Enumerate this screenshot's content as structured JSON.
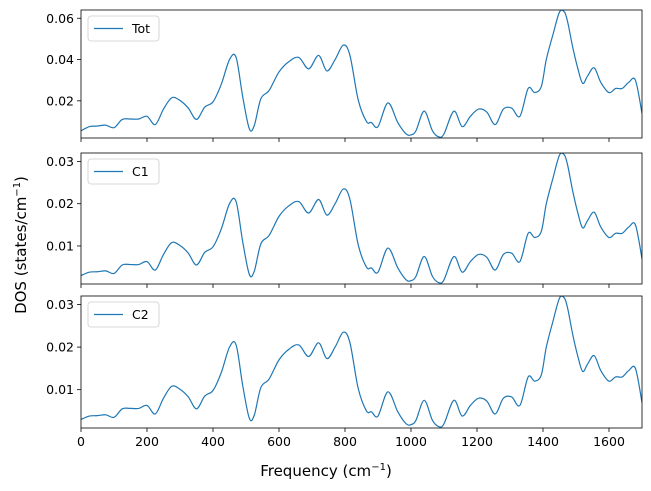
{
  "figure": {
    "xlabel": "Frequency (cm",
    "xlabel_sup": "−1",
    "xlabel_tail": ")",
    "ylabel": "DOS (states/cm",
    "ylabel_sup": "−1",
    "ylabel_tail": ")",
    "line_color": "#1f77b4"
  },
  "chart_data": [
    {
      "type": "line",
      "legend": "Tot",
      "legend_position": "top-left",
      "xlim": [
        0,
        1700
      ],
      "ylim": [
        0.002,
        0.064
      ],
      "yticks": [
        0.02,
        0.04,
        0.06
      ],
      "ytick_labels": [
        "0.02",
        "0.04",
        "0.06"
      ],
      "xticks": [
        0,
        200,
        400,
        600,
        800,
        1000,
        1200,
        1400,
        1600
      ],
      "show_xtick_labels": false,
      "series": [
        {
          "name": "Tot",
          "x": [
            0,
            25,
            50,
            75,
            100,
            125,
            150,
            175,
            200,
            225,
            250,
            275,
            300,
            325,
            350,
            375,
            400,
            425,
            450,
            470,
            490,
            510,
            525,
            545,
            570,
            600,
            630,
            660,
            690,
            720,
            745,
            770,
            795,
            815,
            840,
            865,
            880,
            900,
            930,
            960,
            985,
            1000,
            1015,
            1040,
            1065,
            1085,
            1100,
            1130,
            1155,
            1180,
            1205,
            1230,
            1255,
            1280,
            1305,
            1330,
            1355,
            1375,
            1395,
            1410,
            1430,
            1450,
            1465,
            1475,
            1490,
            1505,
            1520,
            1535,
            1555,
            1575,
            1600,
            1620,
            1640,
            1660,
            1680,
            1700
          ],
          "y": [
            0.0055,
            0.0075,
            0.0078,
            0.0082,
            0.007,
            0.011,
            0.0112,
            0.0112,
            0.0125,
            0.0085,
            0.016,
            0.0215,
            0.0202,
            0.0165,
            0.011,
            0.017,
            0.0195,
            0.028,
            0.04,
            0.041,
            0.022,
            0.0065,
            0.008,
            0.021,
            0.025,
            0.034,
            0.039,
            0.041,
            0.0355,
            0.042,
            0.0345,
            0.04,
            0.047,
            0.042,
            0.0205,
            0.01,
            0.0095,
            0.0075,
            0.019,
            0.0095,
            0.004,
            0.0035,
            0.0055,
            0.015,
            0.0055,
            0.0025,
            0.004,
            0.015,
            0.0075,
            0.0125,
            0.016,
            0.0145,
            0.0085,
            0.016,
            0.0165,
            0.0125,
            0.026,
            0.024,
            0.027,
            0.04,
            0.052,
            0.063,
            0.063,
            0.058,
            0.046,
            0.036,
            0.0285,
            0.032,
            0.036,
            0.029,
            0.024,
            0.026,
            0.026,
            0.029,
            0.03,
            0.014
          ]
        }
      ]
    },
    {
      "type": "line",
      "legend": "C1",
      "legend_position": "top-left",
      "xlim": [
        0,
        1700
      ],
      "ylim": [
        0.001,
        0.032
      ],
      "yticks": [
        0.01,
        0.02,
        0.03
      ],
      "ytick_labels": [
        "0.01",
        "0.02",
        "0.03"
      ],
      "xticks": [
        0,
        200,
        400,
        600,
        800,
        1000,
        1200,
        1400,
        1600
      ],
      "show_xtick_labels": false,
      "series": [
        {
          "name": "C1",
          "x": [
            0,
            25,
            50,
            75,
            100,
            125,
            150,
            175,
            200,
            225,
            250,
            275,
            300,
            325,
            350,
            375,
            400,
            425,
            450,
            470,
            490,
            510,
            525,
            545,
            570,
            600,
            630,
            660,
            690,
            720,
            745,
            770,
            795,
            815,
            840,
            865,
            880,
            900,
            930,
            960,
            985,
            1000,
            1015,
            1040,
            1065,
            1085,
            1100,
            1130,
            1155,
            1180,
            1205,
            1230,
            1255,
            1280,
            1305,
            1330,
            1355,
            1375,
            1395,
            1410,
            1430,
            1450,
            1465,
            1475,
            1490,
            1505,
            1520,
            1535,
            1555,
            1575,
            1600,
            1620,
            1640,
            1660,
            1680,
            1700
          ],
          "y": [
            0.003,
            0.0038,
            0.0039,
            0.0041,
            0.0035,
            0.0055,
            0.0056,
            0.0056,
            0.0063,
            0.0043,
            0.008,
            0.0108,
            0.0101,
            0.0083,
            0.0055,
            0.0085,
            0.0098,
            0.014,
            0.02,
            0.0205,
            0.011,
            0.0033,
            0.004,
            0.0105,
            0.0125,
            0.017,
            0.0195,
            0.0205,
            0.0178,
            0.021,
            0.0173,
            0.02,
            0.0235,
            0.021,
            0.0103,
            0.005,
            0.0048,
            0.0038,
            0.0095,
            0.0048,
            0.002,
            0.0018,
            0.0028,
            0.0075,
            0.0028,
            0.0013,
            0.002,
            0.0075,
            0.0038,
            0.0063,
            0.008,
            0.0073,
            0.0043,
            0.008,
            0.0083,
            0.0063,
            0.013,
            0.012,
            0.0135,
            0.02,
            0.026,
            0.0315,
            0.0315,
            0.029,
            0.023,
            0.018,
            0.0143,
            0.016,
            0.018,
            0.0145,
            0.012,
            0.013,
            0.013,
            0.0145,
            0.015,
            0.007
          ]
        }
      ]
    },
    {
      "type": "line",
      "legend": "C2",
      "legend_position": "top-left",
      "xlim": [
        0,
        1700
      ],
      "ylim": [
        0.001,
        0.032
      ],
      "yticks": [
        0.01,
        0.02,
        0.03
      ],
      "ytick_labels": [
        "0.01",
        "0.02",
        "0.03"
      ],
      "xticks": [
        0,
        200,
        400,
        600,
        800,
        1000,
        1200,
        1400,
        1600
      ],
      "xtick_labels": [
        "0",
        "200",
        "400",
        "600",
        "800",
        "1000",
        "1200",
        "1400",
        "1600"
      ],
      "show_xtick_labels": true,
      "series": [
        {
          "name": "C2",
          "x": [
            0,
            25,
            50,
            75,
            100,
            125,
            150,
            175,
            200,
            225,
            250,
            275,
            300,
            325,
            350,
            375,
            400,
            425,
            450,
            470,
            490,
            510,
            525,
            545,
            570,
            600,
            630,
            660,
            690,
            720,
            745,
            770,
            795,
            815,
            840,
            865,
            880,
            900,
            930,
            960,
            985,
            1000,
            1015,
            1040,
            1065,
            1085,
            1100,
            1130,
            1155,
            1180,
            1205,
            1230,
            1255,
            1280,
            1305,
            1330,
            1355,
            1375,
            1395,
            1410,
            1430,
            1450,
            1465,
            1475,
            1490,
            1505,
            1520,
            1535,
            1555,
            1575,
            1600,
            1620,
            1640,
            1660,
            1680,
            1700
          ],
          "y": [
            0.003,
            0.0038,
            0.0039,
            0.0041,
            0.0035,
            0.0055,
            0.0056,
            0.0056,
            0.0063,
            0.0043,
            0.008,
            0.0108,
            0.0101,
            0.0083,
            0.0055,
            0.0085,
            0.0098,
            0.014,
            0.02,
            0.0205,
            0.011,
            0.0033,
            0.004,
            0.0105,
            0.0125,
            0.017,
            0.0195,
            0.0205,
            0.0178,
            0.021,
            0.0173,
            0.02,
            0.0235,
            0.021,
            0.0103,
            0.005,
            0.0048,
            0.0038,
            0.0095,
            0.0048,
            0.002,
            0.0018,
            0.0028,
            0.0075,
            0.0028,
            0.0013,
            0.002,
            0.0075,
            0.0038,
            0.0063,
            0.008,
            0.0073,
            0.0043,
            0.008,
            0.0083,
            0.0063,
            0.013,
            0.012,
            0.0135,
            0.02,
            0.026,
            0.0315,
            0.0315,
            0.029,
            0.023,
            0.018,
            0.0143,
            0.016,
            0.018,
            0.0145,
            0.012,
            0.013,
            0.013,
            0.0145,
            0.015,
            0.007
          ]
        }
      ]
    }
  ]
}
